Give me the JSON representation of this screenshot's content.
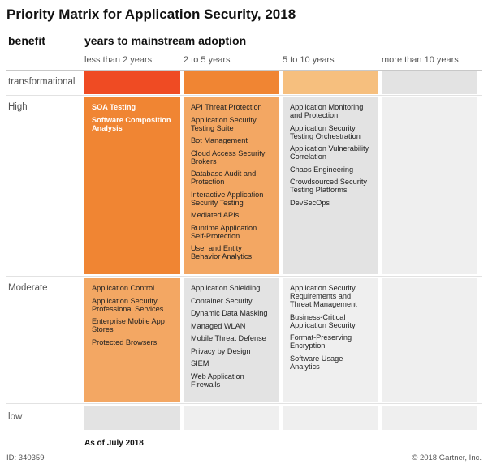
{
  "title": "Priority Matrix for Application Security, 2018",
  "benefit_label": "benefit",
  "years_label": "years to mainstream adoption",
  "columns": [
    "less than 2 years",
    "2 to 5 years",
    "5 to 10 years",
    "more than 10 years"
  ],
  "rows": [
    "transformational",
    "High",
    "Moderate",
    "low"
  ],
  "colors": {
    "transformational_lt2": "#ef4b23",
    "high_orange": "#f08533",
    "medium_orange": "#f3a763",
    "light_orange": "#f6bf7e",
    "light_gray": "#e3e3e3",
    "lighter_gray": "#efefef"
  },
  "cells": {
    "high": {
      "lt2": [
        "SOA Testing",
        "Software Composition Analysis"
      ],
      "y2to5": [
        "API Threat Protection",
        "Application Security Testing Suite",
        "Bot Management",
        "Cloud Access Security Brokers",
        "Database Audit and Protection",
        "Interactive Application Security Testing",
        "Mediated APIs",
        "Runtime Application Self-Protection",
        "User and Entity Behavior Analytics"
      ],
      "y5to10": [
        "Application Monitoring and Protection",
        "Application Security Testing Orchestration",
        "Application Vulnerability Correlation",
        "Chaos Engineering",
        "Crowdsourced Security Testing Platforms",
        "DevSecOps"
      ],
      "gt10": []
    },
    "moderate": {
      "lt2": [
        "Application Control",
        "Application Security Professional Services",
        "Enterprise Mobile App Stores",
        "Protected Browsers"
      ],
      "y2to5": [
        "Application Shielding",
        "Container Security",
        "Dynamic Data Masking",
        "Managed WLAN",
        "Mobile Threat Defense",
        "Privacy by Design",
        "SIEM",
        "Web Application Firewalls"
      ],
      "y5to10": [
        "Application Security Requirements and Threat Management",
        "Business-Critical Application Security",
        "Format-Preserving Encryption",
        "Software Usage Analytics"
      ],
      "gt10": []
    }
  },
  "as_of": "As of July 2018",
  "id_text": "ID: 340359",
  "copyright": "© 2018 Gartner, Inc."
}
